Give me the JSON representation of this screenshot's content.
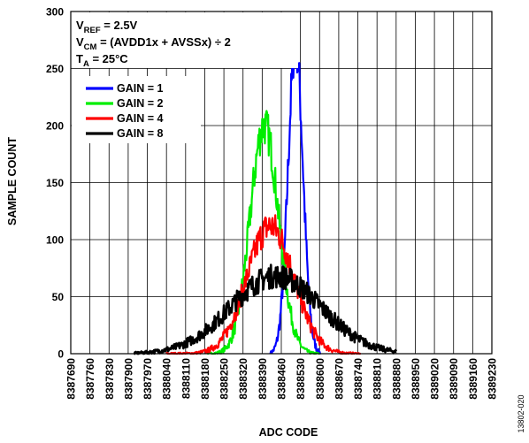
{
  "chart_data": {
    "type": "line",
    "xlabel": "ADC CODE",
    "ylabel": "SAMPLE COUNT",
    "xlim": [
      8387690,
      8389230
    ],
    "ylim": [
      0,
      300
    ],
    "x_ticks": [
      8387690,
      8387760,
      8387830,
      8387900,
      8387970,
      8388040,
      8388110,
      8388180,
      8388250,
      8388320,
      8388390,
      8388460,
      8388530,
      8388600,
      8388670,
      8388740,
      8388810,
      8388880,
      8388950,
      8389020,
      8389090,
      8389160,
      8389230
    ],
    "y_ticks": [
      0,
      50,
      100,
      150,
      200,
      250,
      300
    ],
    "grid": true,
    "annotations": [
      {
        "main": "V",
        "sub": "REF",
        "rest": " = 2.5V"
      },
      {
        "main": "V",
        "sub": "CM",
        "rest": " = (AVDD1x + AVSSx) ÷ 2"
      },
      {
        "main": "T",
        "sub": "A",
        "rest": " = 25°C"
      }
    ],
    "legend_position": "top-left",
    "series": [
      {
        "name": "GAIN = 1",
        "color": "#0000ff",
        "center": 8388512,
        "sigma": 27,
        "peak": 272,
        "range": [
          8388420,
          8388605
        ]
      },
      {
        "name": "GAIN = 2",
        "color": "#00ee00",
        "center": 8388398,
        "sigma": 52,
        "peak": 200,
        "range": [
          8388190,
          8388600
        ]
      },
      {
        "name": "GAIN = 4",
        "color": "#ff0000",
        "center": 8388420,
        "sigma": 85,
        "peak": 112,
        "range": [
          8388040,
          8388750
        ]
      },
      {
        "name": "GAIN = 8",
        "color": "#000000",
        "center": 8388440,
        "sigma": 165,
        "peak": 68,
        "range": [
          8387920,
          8388880
        ]
      }
    ]
  },
  "figure_id": "13802-020"
}
